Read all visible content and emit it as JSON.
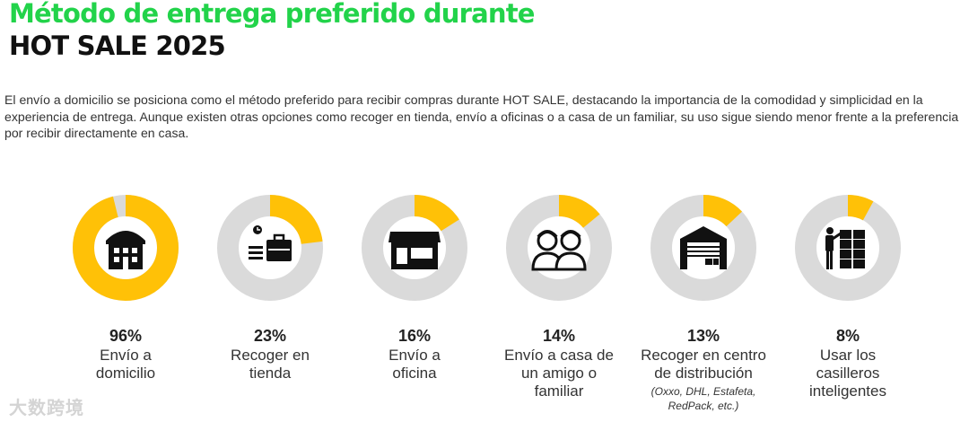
{
  "header": {
    "title_line1": "Método de entrega preferido durante",
    "title_line2": "HOT SALE 2025"
  },
  "description": "El envío a domicilio se posiciona como el método preferido para recibir compras durante HOT SALE, destacando la importancia de la comodidad y simplicidad en la experiencia de entrega. Aunque existen otras opciones como recoger en tienda, envío a oficinas o a casa de un familiar, su uso sigue siendo menor frente a la preferencia por recibir directamente en casa.",
  "colors": {
    "filled": "#FFC107",
    "track": "#DADADA",
    "title_green": "#22D34A",
    "icon": "#111111"
  },
  "chart_data": {
    "type": "pie",
    "unit": "%",
    "items": [
      {
        "value": 96,
        "value_label": "96%",
        "label": "Envío a domicilio",
        "note": "",
        "icon": "building-icon"
      },
      {
        "value": 23,
        "value_label": "23%",
        "label": "Recoger en tienda",
        "note": "",
        "icon": "store-pickup-icon"
      },
      {
        "value": 16,
        "value_label": "16%",
        "label": "Envío a oficina",
        "note": "",
        "icon": "shopfront-icon"
      },
      {
        "value": 14,
        "value_label": "14%",
        "label": "Envío a casa de un amigo o familiar",
        "note": "",
        "icon": "two-people-icon"
      },
      {
        "value": 13,
        "value_label": "13%",
        "label": "Recoger en centro de distribución",
        "note": "(Oxxo, DHL, Estafeta, RedPack, etc.)",
        "icon": "warehouse-icon"
      },
      {
        "value": 8,
        "value_label": "8%",
        "label": "Usar los casilleros inteligentes",
        "note": "",
        "icon": "lockers-icon"
      }
    ]
  },
  "watermark": "大数跨境"
}
